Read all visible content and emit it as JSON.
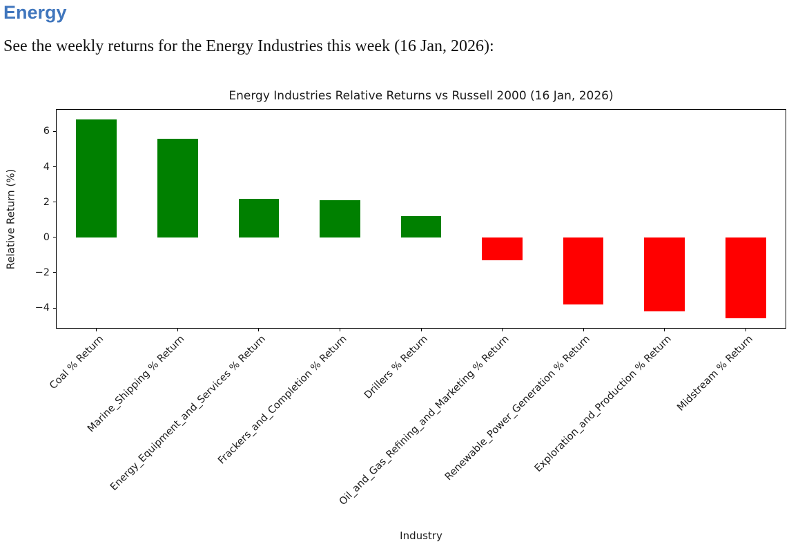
{
  "doc": {
    "heading": "Energy",
    "heading_color": "#4076bd",
    "intro": "See the weekly returns for the Energy Industries this week (16 Jan, 2026):"
  },
  "chart_data": {
    "type": "bar",
    "title": "Energy Industries Relative Returns vs Russell 2000 (16 Jan, 2026)",
    "xlabel": "Industry",
    "ylabel": "Relative Return (%)",
    "categories": [
      "Coal % Return",
      "Marine_Shipping % Return",
      "Energy_Equipment_and_Services % Return",
      "Frackers_and_Completion % Return",
      "Drillers % Return",
      "Oil_and_Gas_Refining_and_Marketing % Return",
      "Renewable_Power_Generation % Return",
      "Exploration_and_Production % Return",
      "Midstream % Return"
    ],
    "values": [
      6.7,
      5.6,
      2.2,
      2.1,
      1.2,
      -1.3,
      -3.8,
      -4.2,
      -4.6
    ],
    "positive_color": "#008000",
    "negative_color": "#ff0000",
    "yticks": [
      6,
      4,
      2,
      0,
      -2,
      -4
    ],
    "ylim": [
      -5.17,
      7.27
    ],
    "xtick_rotation_deg": 45,
    "bar_width_ratio": 0.5,
    "grid": false,
    "legend": "none"
  }
}
